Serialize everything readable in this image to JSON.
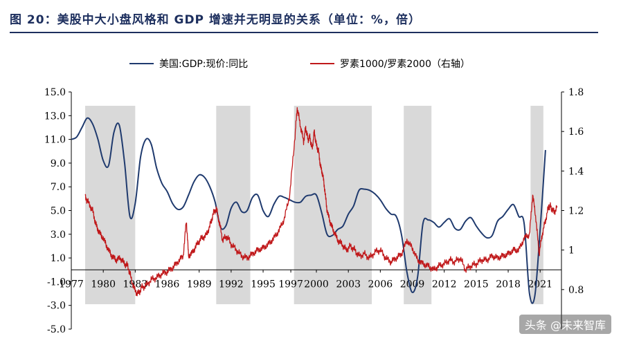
{
  "title": "图 20：美股中大小盘风格和 GDP 增速并无明显的关系（单位：%，倍）",
  "watermark": "头条 @未来智库",
  "colors": {
    "gdp": "#1f3a6e",
    "ratio": "#c0181a",
    "shade": "#d9d9d9",
    "axis": "#000000",
    "title": "#1d2f5e"
  },
  "chart_data": {
    "type": "line",
    "legend_position": "top",
    "grid": false,
    "x_ticks": [
      "1977",
      "1980",
      "1983",
      "1986",
      "1989",
      "1992",
      "1995",
      "1997",
      "2000",
      "2003",
      "2006",
      "2009",
      "2012",
      "2015",
      "2018",
      "2021"
    ],
    "x_tick_years": [
      1977.0,
      1980.0,
      1983.0,
      1986.0,
      1989.0,
      1992.0,
      1995.0,
      1997.6,
      2000.0,
      2003.0,
      2006.0,
      2009.0,
      2012.0,
      2015.0,
      2018.0,
      2021.0
    ],
    "xlim": [
      1977.0,
      2023.0
    ],
    "y_left": {
      "lim": [
        -5.0,
        15.0
      ],
      "ticks": [
        "15.0",
        "13.0",
        "11.0",
        "9.0",
        "7.0",
        "5.0",
        "3.0",
        "1.0",
        "-1.0",
        "-3.0",
        "-5.0"
      ]
    },
    "y_right": {
      "lim": [
        0.6,
        1.8
      ],
      "ticks": [
        "1.8",
        "1.6",
        "1.4",
        "1.2",
        "1",
        "0.8"
      ]
    },
    "shaded_periods": [
      [
        1978.3,
        1983.0
      ],
      [
        1990.6,
        1993.8
      ],
      [
        1997.9,
        2005.2
      ],
      [
        2008.2,
        2010.8
      ],
      [
        2020.1,
        2021.3
      ]
    ],
    "series": [
      {
        "name": "美国:GDP:现价:同比",
        "axis": "left",
        "x": [
          1977.0,
          1977.5,
          1978.0,
          1978.5,
          1979.0,
          1979.5,
          1980.0,
          1980.5,
          1981.0,
          1981.5,
          1982.0,
          1982.5,
          1983.0,
          1983.5,
          1984.0,
          1984.5,
          1985.0,
          1985.5,
          1986.0,
          1986.5,
          1987.0,
          1987.5,
          1988.0,
          1988.5,
          1989.0,
          1989.5,
          1990.0,
          1990.5,
          1991.0,
          1991.5,
          1992.0,
          1992.5,
          1993.0,
          1993.5,
          1994.0,
          1994.5,
          1995.0,
          1995.5,
          1996.0,
          1996.5,
          1997.0,
          1997.5,
          1998.0,
          1998.5,
          1999.0,
          1999.5,
          2000.0,
          2000.5,
          2001.0,
          2001.5,
          2002.0,
          2002.5,
          2003.0,
          2003.5,
          2004.0,
          2004.5,
          2005.0,
          2005.5,
          2006.0,
          2006.5,
          2007.0,
          2007.5,
          2008.0,
          2008.5,
          2009.0,
          2009.5,
          2010.0,
          2010.5,
          2011.0,
          2011.5,
          2012.0,
          2012.5,
          2013.0,
          2013.5,
          2014.0,
          2014.5,
          2015.0,
          2015.5,
          2016.0,
          2016.5,
          2017.0,
          2017.5,
          2018.0,
          2018.5,
          2019.0,
          2019.5,
          2020.0,
          2020.5,
          2021.0,
          2021.5
        ],
        "values": [
          11.0,
          11.2,
          12.0,
          12.8,
          12.3,
          11.0,
          9.2,
          8.8,
          11.6,
          12.2,
          9.0,
          4.5,
          5.6,
          9.5,
          11.0,
          10.6,
          8.6,
          7.3,
          6.6,
          5.6,
          5.1,
          5.3,
          6.3,
          7.4,
          8.0,
          7.8,
          7.0,
          5.7,
          3.6,
          3.7,
          5.2,
          5.7,
          4.9,
          5.0,
          6.1,
          6.3,
          5.0,
          4.5,
          5.5,
          6.2,
          6.1,
          5.9,
          5.7,
          5.7,
          6.2,
          6.3,
          6.3,
          4.8,
          3.0,
          2.9,
          3.4,
          3.7,
          4.7,
          5.4,
          6.7,
          6.8,
          6.7,
          6.4,
          5.9,
          5.2,
          4.7,
          4.5,
          2.9,
          -0.2,
          -1.9,
          -0.6,
          3.9,
          4.2,
          4.0,
          3.6,
          4.0,
          4.3,
          3.5,
          3.4,
          4.1,
          4.4,
          3.7,
          3.1,
          2.7,
          2.9,
          4.1,
          4.5,
          5.1,
          5.5,
          4.5,
          3.9,
          -2.0,
          -2.2,
          3.4,
          10.1
        ]
      },
      {
        "name": "罗素1000/罗素2000（右轴）",
        "axis": "right",
        "x": [
          1978.3,
          1978.6,
          1979.0,
          1979.3,
          1979.6,
          1980.0,
          1980.4,
          1980.8,
          1981.2,
          1981.6,
          1982.0,
          1982.3,
          1982.6,
          1983.0,
          1983.3,
          1983.6,
          1984.0,
          1984.5,
          1985.0,
          1985.5,
          1986.0,
          1986.5,
          1987.0,
          1987.5,
          1987.8,
          1988.0,
          1988.4,
          1988.8,
          1989.2,
          1989.6,
          1990.0,
          1990.3,
          1990.6,
          1990.9,
          1991.2,
          1991.6,
          1992.0,
          1992.5,
          1993.0,
          1993.5,
          1994.0,
          1994.5,
          1995.0,
          1995.5,
          1996.0,
          1996.5,
          1997.0,
          1997.5,
          1998.0,
          1998.2,
          1998.5,
          1998.8,
          1999.0,
          1999.2,
          1999.4,
          1999.6,
          1999.8,
          2000.0,
          2000.2,
          2000.4,
          2000.6,
          2000.8,
          2001.0,
          2001.3,
          2001.6,
          2002.0,
          2002.4,
          2002.8,
          2003.2,
          2003.6,
          2004.0,
          2004.5,
          2005.0,
          2005.5,
          2006.0,
          2006.5,
          2007.0,
          2007.5,
          2008.0,
          2008.5,
          2009.0,
          2009.5,
          2010.0,
          2010.5,
          2011.0,
          2011.5,
          2012.0,
          2012.5,
          2013.0,
          2013.5,
          2014.0,
          2014.5,
          2015.0,
          2015.5,
          2016.0,
          2016.5,
          2017.0,
          2017.5,
          2018.0,
          2018.5,
          2019.0,
          2019.5,
          2020.0,
          2020.3,
          2020.6,
          2020.9,
          2021.2,
          2021.5,
          2021.8,
          2022.0,
          2022.3,
          2022.6
        ],
        "values": [
          1.27,
          1.24,
          1.2,
          1.13,
          1.09,
          1.06,
          1.01,
          0.97,
          0.95,
          0.96,
          0.93,
          0.92,
          0.86,
          0.79,
          0.78,
          0.81,
          0.82,
          0.85,
          0.86,
          0.88,
          0.89,
          0.91,
          0.94,
          0.97,
          1.15,
          0.97,
          0.99,
          1.03,
          1.06,
          1.07,
          1.12,
          1.18,
          1.21,
          1.14,
          1.05,
          1.07,
          1.03,
          1.0,
          0.97,
          0.96,
          0.98,
          1.0,
          1.01,
          1.03,
          1.06,
          1.1,
          1.16,
          1.28,
          1.58,
          1.72,
          1.63,
          1.55,
          1.62,
          1.56,
          1.57,
          1.51,
          1.6,
          1.53,
          1.5,
          1.42,
          1.38,
          1.3,
          1.2,
          1.14,
          1.1,
          1.05,
          1.03,
          1.0,
          1.02,
          1.0,
          0.97,
          0.98,
          0.96,
          0.99,
          1.0,
          0.96,
          0.94,
          0.96,
          0.98,
          1.05,
          1.01,
          0.95,
          0.93,
          0.92,
          0.9,
          0.92,
          0.93,
          0.95,
          0.94,
          0.96,
          0.9,
          0.92,
          0.93,
          0.95,
          0.95,
          0.97,
          0.96,
          0.97,
          0.98,
          1.0,
          1.0,
          1.06,
          1.08,
          1.28,
          1.16,
          0.98,
          1.08,
          1.15,
          1.22,
          1.22,
          1.19,
          1.22
        ]
      }
    ]
  }
}
